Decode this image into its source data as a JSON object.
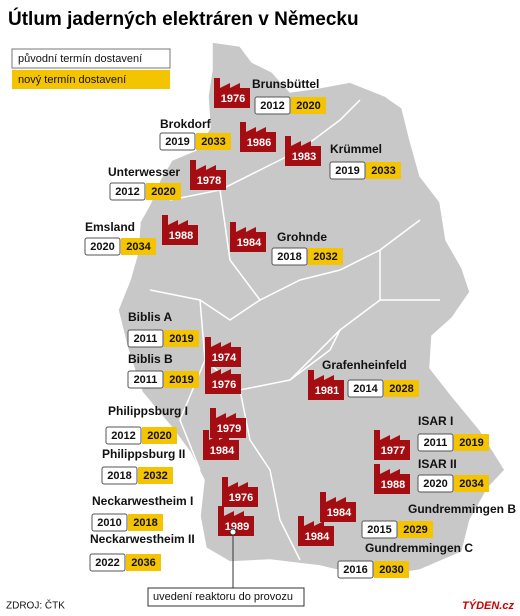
{
  "header": {
    "title": "Útlum jaderných elektráren v Německu"
  },
  "legend": {
    "original": "původní termín dostavení",
    "new": "nový termín dostavení"
  },
  "plants": [
    {
      "name": "Brunsbüttel",
      "original": 2012,
      "new": 2020,
      "start": 1976
    },
    {
      "name": "Brokdorf",
      "original": 2019,
      "new": 2033,
      "start": 1986
    },
    {
      "name": "Krümmel",
      "original": 2019,
      "new": 2033,
      "start": 1983
    },
    {
      "name": "Unterwesser",
      "original": 2012,
      "new": 2020,
      "start": 1978
    },
    {
      "name": "Emsland",
      "original": 2020,
      "new": 2034,
      "start": 1988
    },
    {
      "name": "Grohnde",
      "original": 2018,
      "new": 2032,
      "start": 1984
    },
    {
      "name": "Biblis A",
      "original": 2011,
      "new": 2019,
      "start": 1974
    },
    {
      "name": "Biblis B",
      "original": 2011,
      "new": 2019,
      "start": 1976
    },
    {
      "name": "Grafenheinfeld",
      "original": 2014,
      "new": 2028,
      "start": 1981
    },
    {
      "name": "Philippsburg I",
      "original": 2012,
      "new": 2020,
      "start": 1979
    },
    {
      "name": "Philippsburg II",
      "original": 2018,
      "new": 2032,
      "start": 1984
    },
    {
      "name": "ISAR I",
      "original": 2011,
      "new": 2019,
      "start": 1977
    },
    {
      "name": "ISAR II",
      "original": 2020,
      "new": 2034,
      "start": 1988
    },
    {
      "name": "Neckarwestheim I",
      "original": 2010,
      "new": 2018,
      "start": 1976
    },
    {
      "name": "Neckarwestheim II",
      "original": 2022,
      "new": 2036,
      "start": 1989
    },
    {
      "name": "Gundremmingen B",
      "original": 2015,
      "new": 2029,
      "start": 1984
    },
    {
      "name": "Gundremmingen C",
      "original": 2016,
      "new": 2030,
      "start": 1984
    }
  ],
  "callout": "uvedení reaktoru do provozu",
  "footer": {
    "source": "ZDROJ: ČTK",
    "brand": "TÝDEN.cz"
  }
}
